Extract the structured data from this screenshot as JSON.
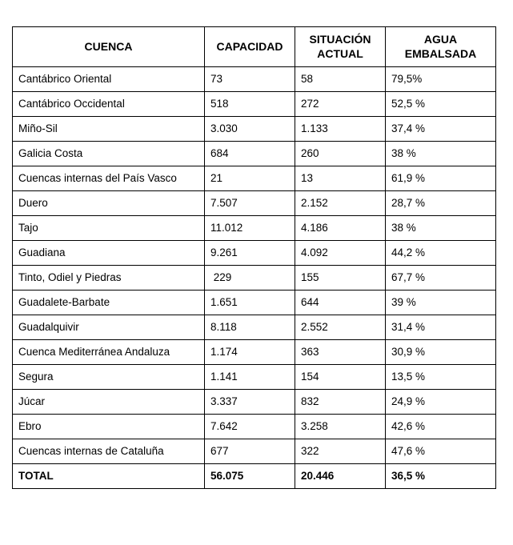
{
  "table": {
    "headers": [
      "CUENCA",
      "CAPACIDAD",
      "SITUACIÓN ACTUAL",
      "AGUA EMBALSADA"
    ],
    "rows": [
      [
        "Cantábrico Oriental",
        "73",
        "58",
        "79,5%"
      ],
      [
        "Cantábrico Occidental",
        "518",
        "272",
        "52,5 %"
      ],
      [
        "Miño-Sil",
        "3.030",
        "1.133",
        "37,4 %"
      ],
      [
        "Galicia Costa",
        "684",
        "260",
        "38 %"
      ],
      [
        "Cuencas internas del País Vasco",
        "21",
        "13",
        "61,9 %"
      ],
      [
        "Duero",
        "7.507",
        "2.152",
        "28,7 %"
      ],
      [
        "Tajo",
        "11.012",
        "4.186",
        "38 %"
      ],
      [
        "Guadiana",
        "9.261",
        "4.092",
        "44,2 %"
      ],
      [
        "Tinto, Odiel y Piedras",
        " 229",
        "155",
        "67,7 %"
      ],
      [
        "Guadalete-Barbate",
        "1.651",
        "644",
        "39 %"
      ],
      [
        "Guadalquivir",
        "8.118",
        "2.552",
        "31,4 %"
      ],
      [
        "Cuenca Mediterránea Andaluza",
        "1.174",
        "363",
        "30,9 %"
      ],
      [
        "Segura",
        "1.141",
        "154",
        "13,5 %"
      ],
      [
        "Júcar",
        "3.337",
        "832",
        "24,9 %"
      ],
      [
        "Ebro",
        "7.642",
        "3.258",
        "42,6 %"
      ],
      [
        "Cuencas internas de Cataluña",
        "677",
        "322",
        "47,6 %"
      ]
    ],
    "total_row": [
      "TOTAL",
      "56.075",
      "20.446",
      "36,5 %"
    ]
  }
}
